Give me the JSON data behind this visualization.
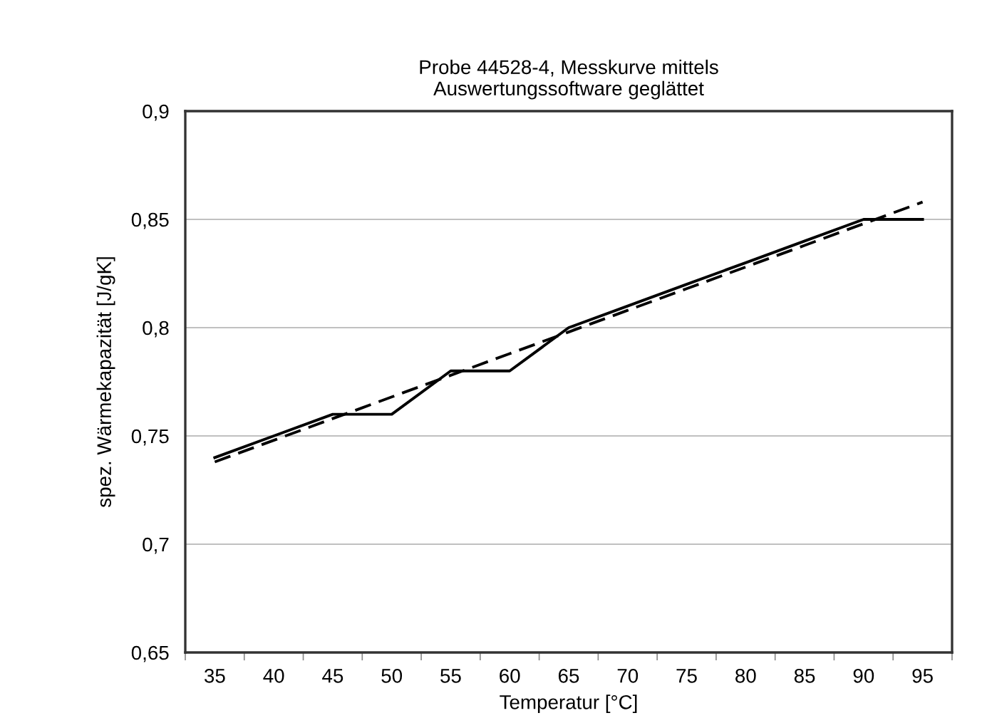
{
  "chart_data": {
    "type": "line",
    "title": "Probe 44528-4, Messkurve mittels\nAuswertungssoftware geglättet",
    "xlabel": "Temperatur [°C]",
    "ylabel": "spez. Wärmekapazität [J/gK]",
    "categories": [
      "35",
      "40",
      "45",
      "50",
      "55",
      "60",
      "65",
      "70",
      "75",
      "80",
      "85",
      "90",
      "95"
    ],
    "series": [
      {
        "color": "#000000",
        "line_style": "solid",
        "values": [
          0.74,
          0.75,
          0.76,
          0.76,
          0.78,
          0.78,
          0.8,
          0.81,
          0.82,
          0.83,
          0.84,
          0.85,
          0.85
        ]
      },
      {
        "color": "#000000",
        "line_style": "dashed",
        "values": [
          0.738,
          0.748,
          0.758,
          0.768,
          0.778,
          0.788,
          0.798,
          0.808,
          0.818,
          0.828,
          0.838,
          0.848,
          0.858
        ]
      }
    ],
    "ylim": [
      0.65,
      0.9
    ],
    "yticks": [
      {
        "value": 0.65,
        "label": "0,65"
      },
      {
        "value": 0.7,
        "label": "0,7"
      },
      {
        "value": 0.75,
        "label": "0,75"
      },
      {
        "value": 0.8,
        "label": "0,8"
      },
      {
        "value": 0.85,
        "label": "0,85"
      },
      {
        "value": 0.9,
        "label": "0,9"
      }
    ],
    "grid": "y",
    "legend": false,
    "marker": "none"
  }
}
